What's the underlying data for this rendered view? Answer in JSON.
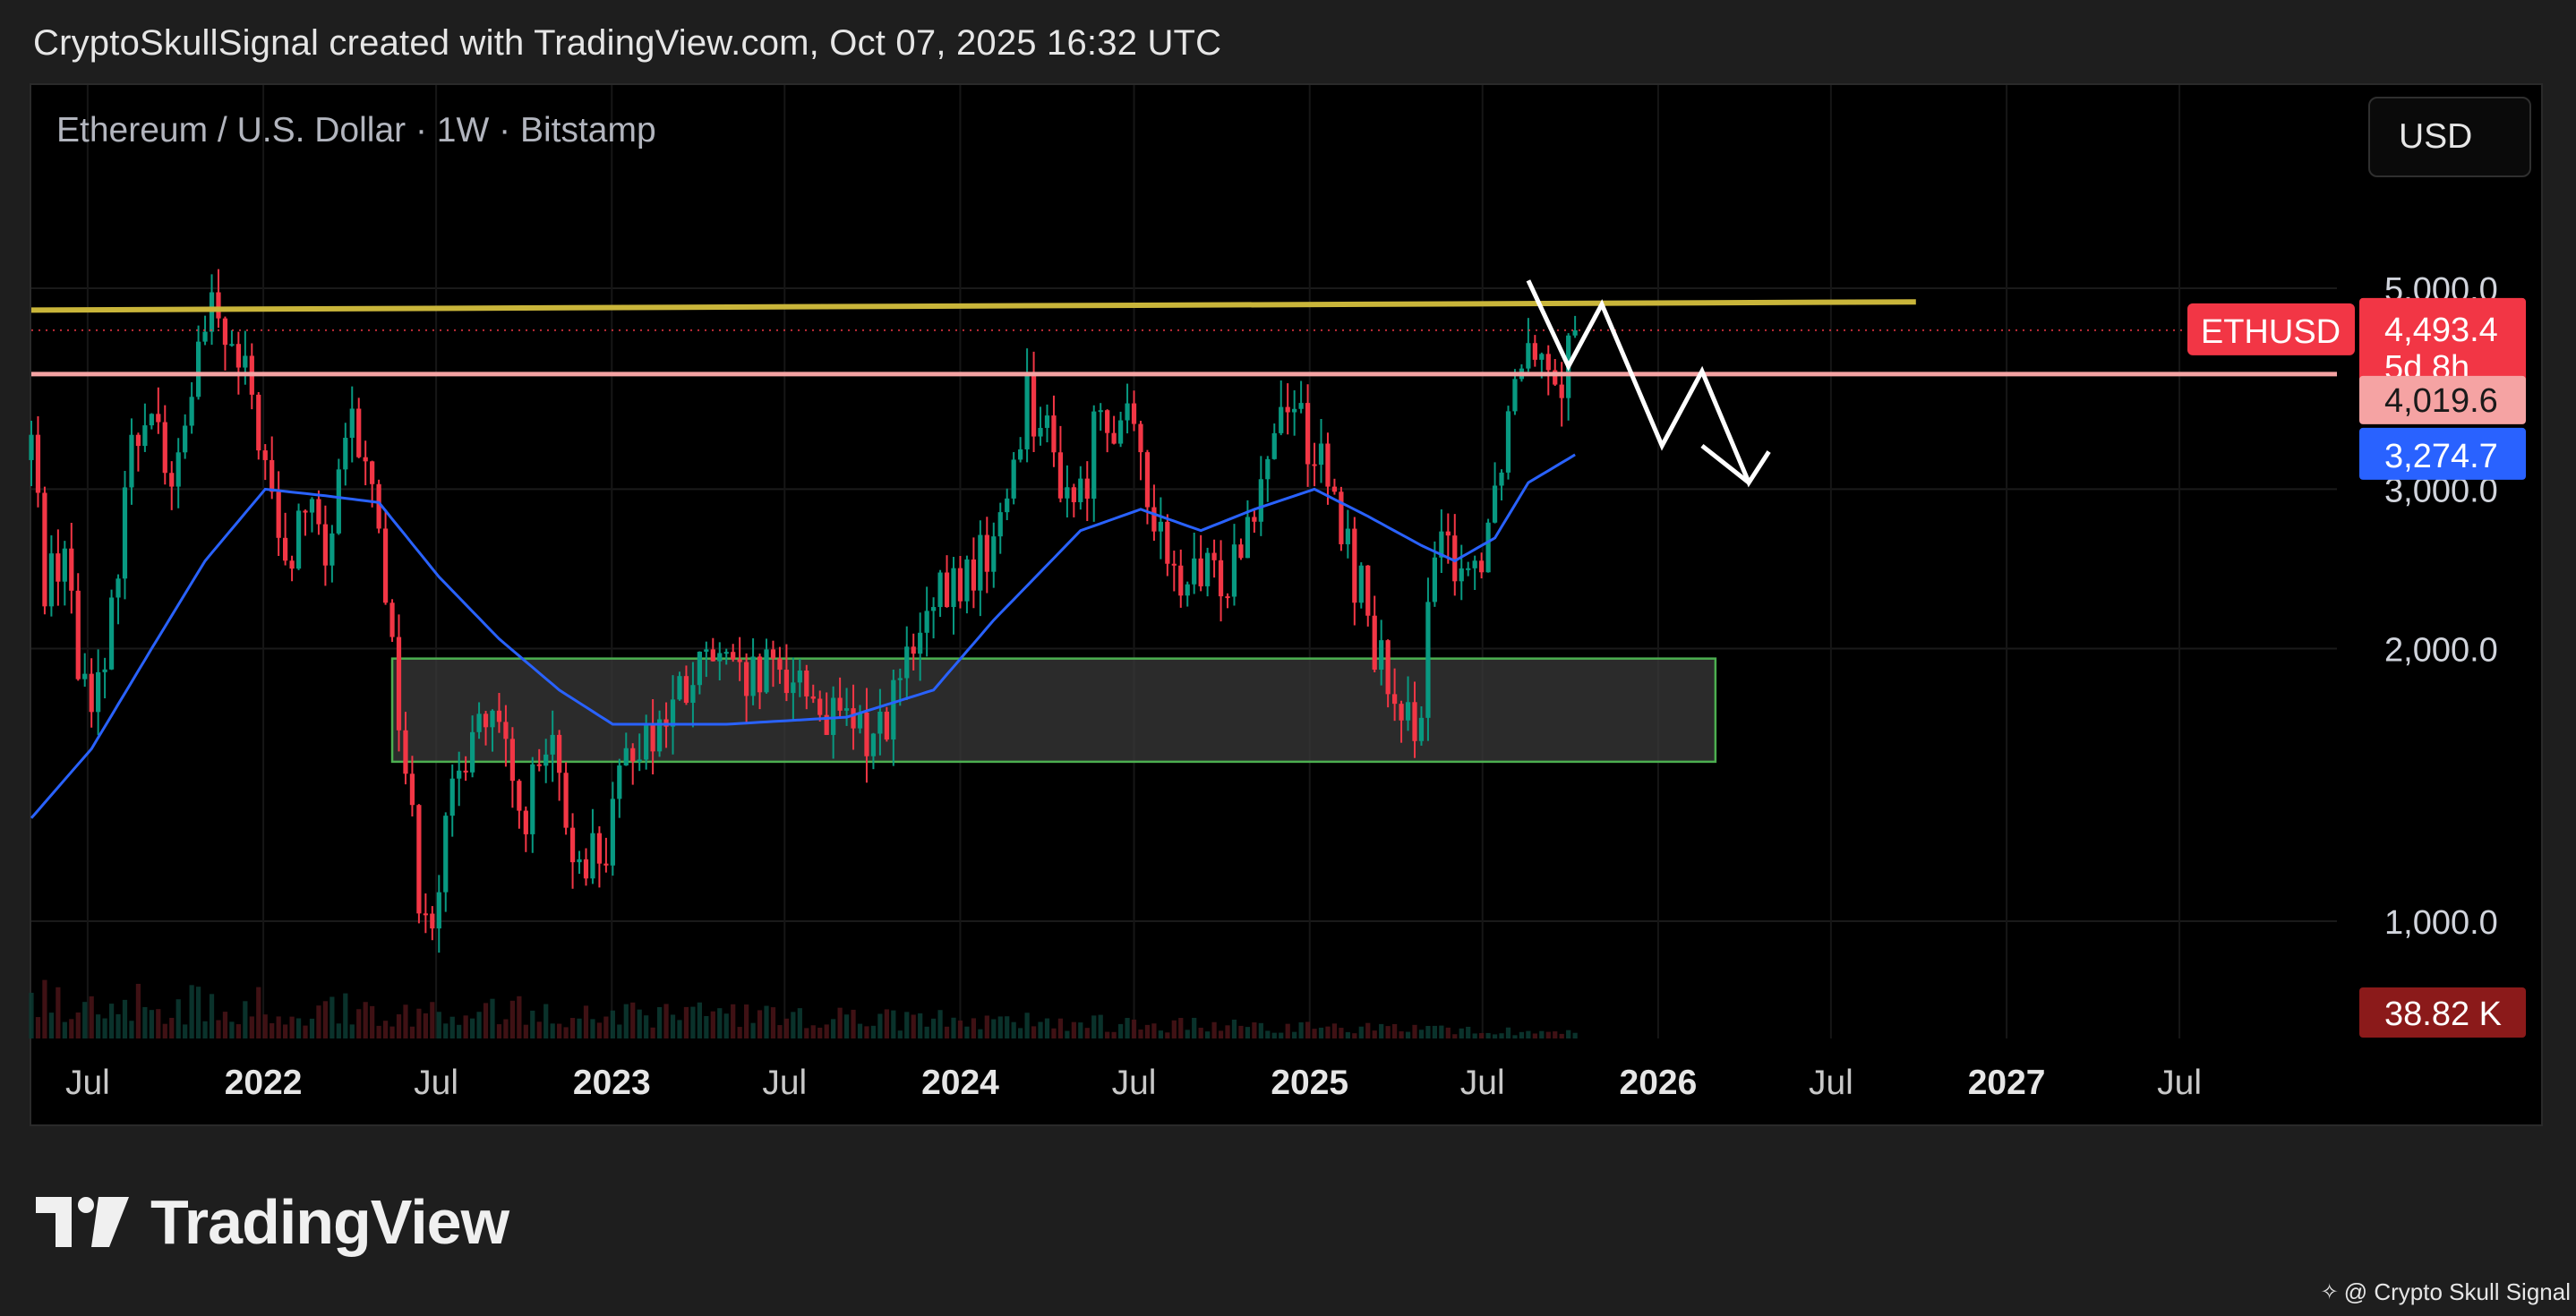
{
  "header": {
    "text": "CryptoSkullSignal created with TradingView.com, Oct 07, 2025 16:32 UTC"
  },
  "symbol": {
    "label": "Ethereum / U.S. Dollar · 1W · Bitstamp"
  },
  "currency_button": {
    "label": "USD"
  },
  "branding": {
    "logo_text": "TradingView",
    "credit_text": "@ Crypto Skull Signal",
    "credit_icon": "tradingview-diamond-icon"
  },
  "colors": {
    "background": "#000000",
    "up_candle": "#089981",
    "down_candle": "#f23645",
    "ma_line": "#2962ff",
    "resistance_line": "#c9b53a",
    "support_line": "#f5a3a3",
    "zone_fill": "#3a3a3a",
    "zone_border": "#4caf50",
    "forecast": "#ffffff",
    "price_tag": "#f23645",
    "volume_tag": "#8b1a1a"
  },
  "chart_data": {
    "type": "candlestick",
    "interval": "1W",
    "y_scale": "log",
    "ylim": [
      680,
      7500
    ],
    "y_ticks": [
      {
        "value": 1000,
        "label": "1,000.0"
      },
      {
        "value": 2000,
        "label": "2,000.0"
      },
      {
        "value": 3000,
        "label": "3,000.0"
      },
      {
        "value": 5000,
        "label": "5,000.0"
      }
    ],
    "xlim": [
      "2021-05-03",
      "2027-12-13"
    ],
    "x_ticks": [
      {
        "date": "2021-07-01",
        "label": "Jul",
        "bold": false
      },
      {
        "date": "2022-01-01",
        "label": "2022",
        "bold": true
      },
      {
        "date": "2022-07-01",
        "label": "Jul",
        "bold": false
      },
      {
        "date": "2023-01-01",
        "label": "2023",
        "bold": true
      },
      {
        "date": "2023-07-01",
        "label": "Jul",
        "bold": false
      },
      {
        "date": "2024-01-01",
        "label": "2024",
        "bold": true
      },
      {
        "date": "2024-07-01",
        "label": "Jul",
        "bold": false
      },
      {
        "date": "2025-01-01",
        "label": "2025",
        "bold": true
      },
      {
        "date": "2025-07-01",
        "label": "Jul",
        "bold": false
      },
      {
        "date": "2026-01-01",
        "label": "2026",
        "bold": true
      },
      {
        "date": "2026-07-01",
        "label": "Jul",
        "bold": false
      },
      {
        "date": "2027-01-01",
        "label": "2027",
        "bold": true
      },
      {
        "date": "2027-07-01",
        "label": "Jul",
        "bold": false
      }
    ],
    "close_series": {
      "start_date": "2021-05-03",
      "step_days": 7,
      "anchors": [
        [
          "2021-05-03",
          3400
        ],
        [
          "2021-05-17",
          2400
        ],
        [
          "2021-06-07",
          2600
        ],
        [
          "2021-06-21",
          1900
        ],
        [
          "2021-07-19",
          1800
        ],
        [
          "2021-08-09",
          3100
        ],
        [
          "2021-09-06",
          3900
        ],
        [
          "2021-09-27",
          2900
        ],
        [
          "2021-10-18",
          3900
        ],
        [
          "2021-11-08",
          4700
        ],
        [
          "2021-11-29",
          4200
        ],
        [
          "2021-12-20",
          3800
        ],
        [
          "2022-01-24",
          2400
        ],
        [
          "2022-02-14",
          2900
        ],
        [
          "2022-03-07",
          2500
        ],
        [
          "2022-04-04",
          3500
        ],
        [
          "2022-05-02",
          2800
        ],
        [
          "2022-05-16",
          2000
        ],
        [
          "2022-06-13",
          1100
        ],
        [
          "2022-06-27",
          1050
        ],
        [
          "2022-08-08",
          1700
        ],
        [
          "2022-09-05",
          1600
        ],
        [
          "2022-09-26",
          1300
        ],
        [
          "2022-10-31",
          1550
        ],
        [
          "2022-11-14",
          1200
        ],
        [
          "2022-12-26",
          1200
        ],
        [
          "2023-01-23",
          1600
        ],
        [
          "2023-02-20",
          1650
        ],
        [
          "2023-04-17",
          1950
        ],
        [
          "2023-05-15",
          1800
        ],
        [
          "2023-07-10",
          1900
        ],
        [
          "2023-08-21",
          1650
        ],
        [
          "2023-10-02",
          1600
        ],
        [
          "2023-11-06",
          1900
        ],
        [
          "2023-12-11",
          2250
        ],
        [
          "2024-01-08",
          2400
        ],
        [
          "2024-02-12",
          2700
        ],
        [
          "2024-03-11",
          3900
        ],
        [
          "2024-04-15",
          3100
        ],
        [
          "2024-05-06",
          2900
        ],
        [
          "2024-05-27",
          3800
        ],
        [
          "2024-07-08",
          3300
        ],
        [
          "2024-08-05",
          2400
        ],
        [
          "2024-09-09",
          2350
        ],
        [
          "2024-10-07",
          2450
        ],
        [
          "2024-11-04",
          3000
        ],
        [
          "2024-12-09",
          3900
        ],
        [
          "2025-01-06",
          3300
        ],
        [
          "2025-02-03",
          2700
        ],
        [
          "2025-03-03",
          2200
        ],
        [
          "2025-04-07",
          1550
        ],
        [
          "2025-04-28",
          1800
        ],
        [
          "2025-05-12",
          2500
        ],
        [
          "2025-06-02",
          2550
        ],
        [
          "2025-06-23",
          2450
        ],
        [
          "2025-07-14",
          3000
        ],
        [
          "2025-07-28",
          3700
        ],
        [
          "2025-08-18",
          4600
        ],
        [
          "2025-09-01",
          4350
        ],
        [
          "2025-09-22",
          4050
        ],
        [
          "2025-10-06",
          4493.4
        ]
      ]
    },
    "ma_series": {
      "anchors": [
        [
          "2021-05-03",
          1300
        ],
        [
          "2021-07-05",
          1550
        ],
        [
          "2021-09-06",
          2000
        ],
        [
          "2021-11-01",
          2500
        ],
        [
          "2022-01-03",
          3000
        ],
        [
          "2022-03-07",
          2950
        ],
        [
          "2022-05-02",
          2900
        ],
        [
          "2022-07-04",
          2400
        ],
        [
          "2022-09-05",
          2050
        ],
        [
          "2022-11-07",
          1800
        ],
        [
          "2023-01-02",
          1650
        ],
        [
          "2023-05-01",
          1650
        ],
        [
          "2023-09-04",
          1680
        ],
        [
          "2023-12-04",
          1800
        ],
        [
          "2024-02-05",
          2150
        ],
        [
          "2024-05-06",
          2700
        ],
        [
          "2024-07-08",
          2850
        ],
        [
          "2024-09-09",
          2700
        ],
        [
          "2024-11-04",
          2850
        ],
        [
          "2025-01-06",
          3000
        ],
        [
          "2025-03-03",
          2800
        ],
        [
          "2025-04-28",
          2600
        ],
        [
          "2025-06-02",
          2500
        ],
        [
          "2025-07-14",
          2650
        ],
        [
          "2025-08-18",
          3050
        ],
        [
          "2025-10-06",
          3274.7
        ]
      ]
    },
    "volume_bars_peak_label": "38.82 K",
    "annotations": {
      "resistance_line": {
        "from": [
          "2021-05-03",
          4730
        ],
        "to": [
          "2026-09-28",
          4830
        ]
      },
      "support_line": {
        "value": 4019.6
      },
      "last_price_dotted": {
        "value": 4493.4
      },
      "zone_box": {
        "from": "2022-05-16",
        "to": "2026-03-02",
        "low": 1500,
        "high": 1950
      },
      "forecast_path": [
        [
          "2025-08-18",
          5100
        ],
        [
          "2025-09-29",
          4100
        ],
        [
          "2025-11-03",
          4800
        ],
        [
          "2026-01-05",
          3350
        ],
        [
          "2026-02-16",
          4050
        ],
        [
          "2026-04-06",
          3050
        ],
        [
          "2026-04-27",
          3300
        ]
      ],
      "forecast_arrowhead": {
        "tip": [
          "2026-04-06",
          3050
        ],
        "arm1": [
          "2026-02-16",
          3350
        ]
      }
    },
    "price_tags": [
      {
        "name": "ethusd-last-price",
        "label": "4,493.4",
        "sublabel": "5d 8h",
        "symbol": "ETHUSD",
        "value": 4493.4
      },
      {
        "name": "support-price",
        "label": "4,019.6",
        "value": 4019.6
      },
      {
        "name": "ma-price",
        "label": "3,274.7",
        "value": 3274.7
      },
      {
        "name": "volume",
        "label": "38.82 K"
      }
    ]
  }
}
